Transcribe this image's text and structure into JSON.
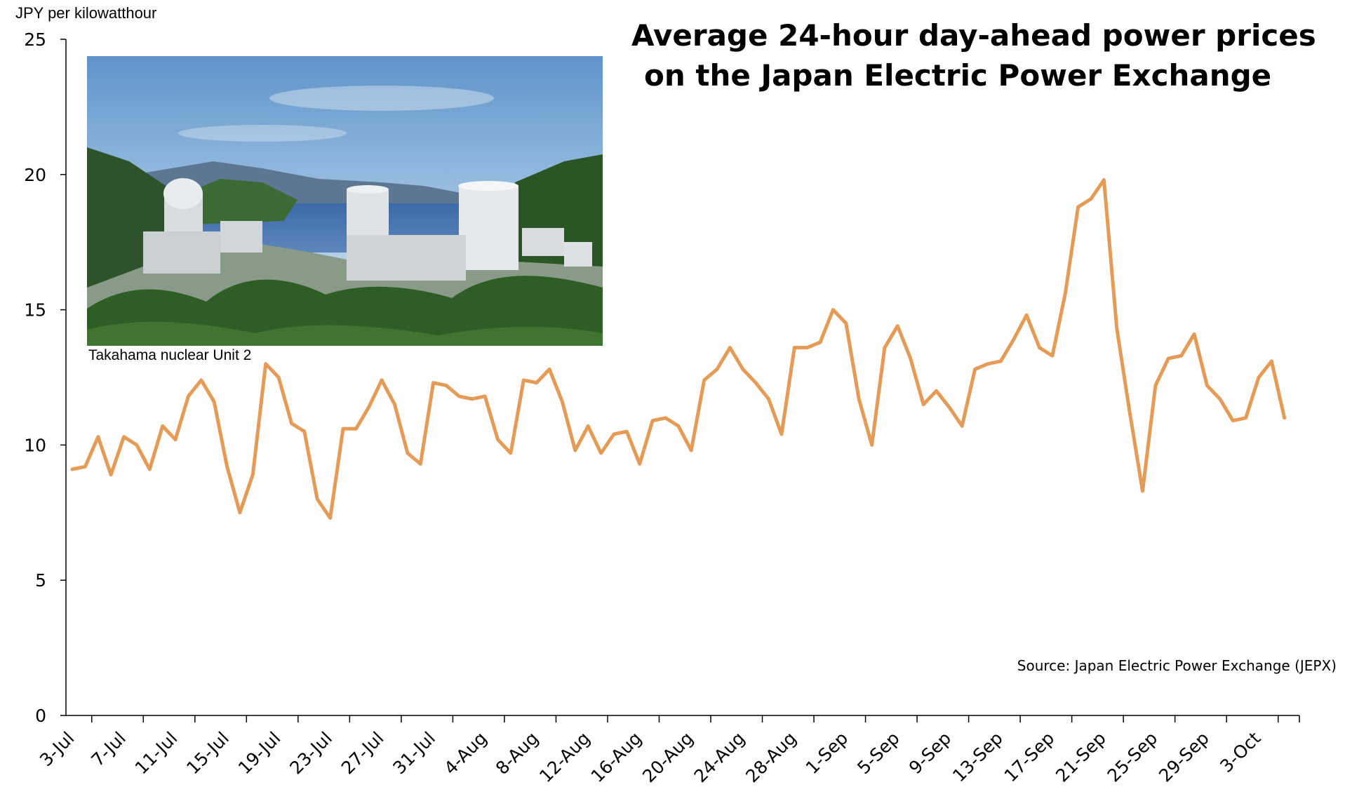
{
  "chart_data": {
    "type": "line",
    "title_lines": [
      "Average 24-hour day-ahead power prices",
      "on the Japan Electric Power Exchange"
    ],
    "ylabel": "JPY per kilowatthour",
    "xlabel": "",
    "ylim": [
      0,
      25
    ],
    "yticks": [
      "0",
      "5",
      "10",
      "15",
      "20",
      "25"
    ],
    "x_tick_labels": [
      "3-Jul",
      "7-Jul",
      "11-Jul",
      "15-Jul",
      "19-Jul",
      "23-Jul",
      "27-Jul",
      "31-Jul",
      "4-Aug",
      "8-Aug",
      "12-Aug",
      "16-Aug",
      "20-Aug",
      "24-Aug",
      "28-Aug",
      "1-Sep",
      "5-Sep",
      "9-Sep",
      "13-Sep",
      "17-Sep",
      "21-Sep",
      "25-Sep",
      "29-Sep",
      "3-Oct"
    ],
    "x_start": "3-Jul",
    "x_end": "5-Oct",
    "grid": false,
    "legend": "none",
    "color": "#E59A55",
    "values": [
      9.1,
      9.2,
      10.3,
      8.9,
      10.3,
      10.0,
      9.1,
      10.7,
      10.2,
      11.8,
      12.4,
      11.6,
      9.2,
      7.5,
      8.9,
      13.0,
      12.5,
      10.8,
      10.5,
      8.0,
      7.3,
      10.6,
      10.6,
      11.4,
      12.4,
      11.5,
      9.7,
      9.3,
      12.3,
      12.2,
      11.8,
      11.7,
      11.8,
      10.2,
      9.7,
      12.4,
      12.3,
      12.8,
      11.6,
      9.8,
      10.7,
      9.7,
      10.4,
      10.5,
      9.3,
      10.9,
      11.0,
      10.7,
      9.8,
      12.4,
      12.8,
      13.6,
      12.8,
      12.3,
      11.7,
      10.4,
      13.6,
      13.6,
      13.8,
      15.0,
      14.5,
      11.7,
      10.0,
      13.6,
      14.4,
      13.2,
      11.5,
      12.0,
      11.4,
      10.7,
      12.8,
      13.0,
      13.1,
      13.9,
      14.8,
      13.6,
      13.3,
      15.6,
      18.8,
      19.1,
      19.8,
      14.3,
      11.2,
      8.3,
      12.2,
      13.2,
      13.3,
      14.1,
      12.2,
      11.7,
      10.9,
      11.0,
      12.5,
      13.1,
      11.0
    ]
  },
  "inset": {
    "caption": "Takahama nuclear Unit 2"
  },
  "source": "Source: Japan Electric Power Exchange (JEPX)"
}
